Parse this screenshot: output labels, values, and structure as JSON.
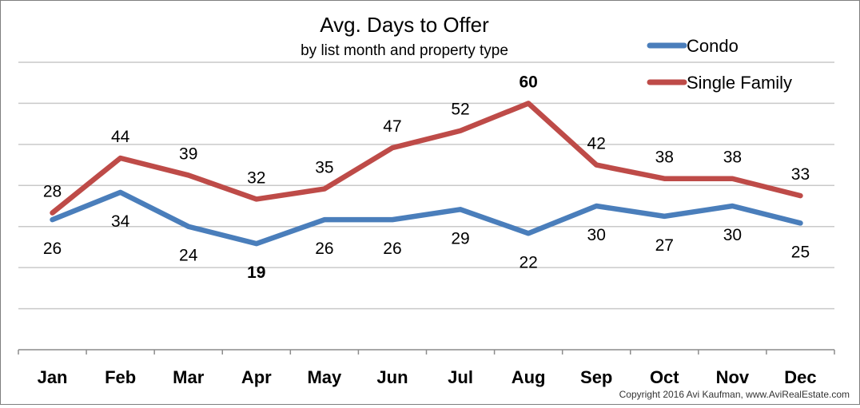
{
  "chart_data": {
    "type": "line",
    "title": "Avg. Days to Offer",
    "subtitle": "by list month and property type",
    "xlabel": "",
    "ylabel": "",
    "categories": [
      "Jan",
      "Feb",
      "Mar",
      "Apr",
      "May",
      "Jun",
      "Jul",
      "Aug",
      "Sep",
      "Oct",
      "Nov",
      "Dec"
    ],
    "series": [
      {
        "name": "Condo",
        "color": "#4a7ebb",
        "values": [
          26,
          34,
          24,
          19,
          26,
          26,
          29,
          22,
          30,
          27,
          30,
          25
        ],
        "bold_labels": [
          3
        ]
      },
      {
        "name": "Single Family",
        "color": "#be4b48",
        "values": [
          28,
          44,
          39,
          32,
          35,
          47,
          52,
          60,
          42,
          38,
          38,
          33
        ],
        "bold_labels": [
          7
        ]
      }
    ],
    "ylim": [
      -12,
      72
    ],
    "grid": true,
    "legend": "top-right",
    "copyright": "Copyright 2016 Avi Kaufman, www.AviRealEstate.com"
  }
}
